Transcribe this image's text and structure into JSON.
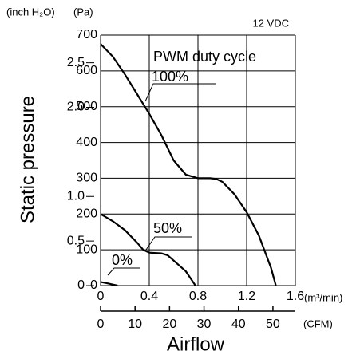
{
  "chart_data": {
    "type": "line",
    "ylabel": "Static pressure",
    "xlabel": "Airflow",
    "y_unit": "(Pa)",
    "y2_unit": "(inch H₂O)",
    "x_unit": "(m³/min)",
    "x2_unit": "(CFM)",
    "annotations": [
      "PWM duty cycle",
      "12 VDC"
    ],
    "xlim": [
      0,
      1.6
    ],
    "xticks": [
      0,
      0.4,
      0.8,
      1.2,
      1.6
    ],
    "ylim": [
      0,
      700
    ],
    "yticks": [
      0,
      100,
      200,
      300,
      400,
      500,
      600,
      700
    ],
    "y2lim": [
      0,
      2.81
    ],
    "y2ticks": [
      0,
      0.5,
      {
        "value": 1,
        "label": "1.0"
      },
      {
        "value": 2,
        "label": "2.0"
      },
      2.5
    ],
    "x2lim": [
      0,
      56.5
    ],
    "x2ticks": [
      0,
      10,
      20,
      30,
      40,
      50
    ],
    "grid": true,
    "series": [
      {
        "name": "100%",
        "color": "#000000",
        "x": [
          0,
          0.1,
          0.2,
          0.3,
          0.4,
          0.5,
          0.6,
          0.7,
          0.8,
          0.9,
          0.95,
          1.0,
          1.1,
          1.2,
          1.3,
          1.4,
          1.44
        ],
        "values": [
          675,
          640,
          590,
          535,
          480,
          420,
          350,
          310,
          300,
          300,
          298,
          290,
          255,
          205,
          140,
          50,
          0
        ]
      },
      {
        "name": "50%",
        "color": "#000000",
        "x": [
          0,
          0.1,
          0.2,
          0.3,
          0.35,
          0.4,
          0.5,
          0.55,
          0.6,
          0.7,
          0.78
        ],
        "values": [
          200,
          180,
          155,
          120,
          100,
          92,
          90,
          85,
          70,
          40,
          0
        ]
      },
      {
        "name": "0%",
        "color": "#000000",
        "x": [
          0,
          0.05,
          0.1,
          0.14
        ],
        "values": [
          10,
          7,
          3,
          0
        ]
      }
    ]
  }
}
